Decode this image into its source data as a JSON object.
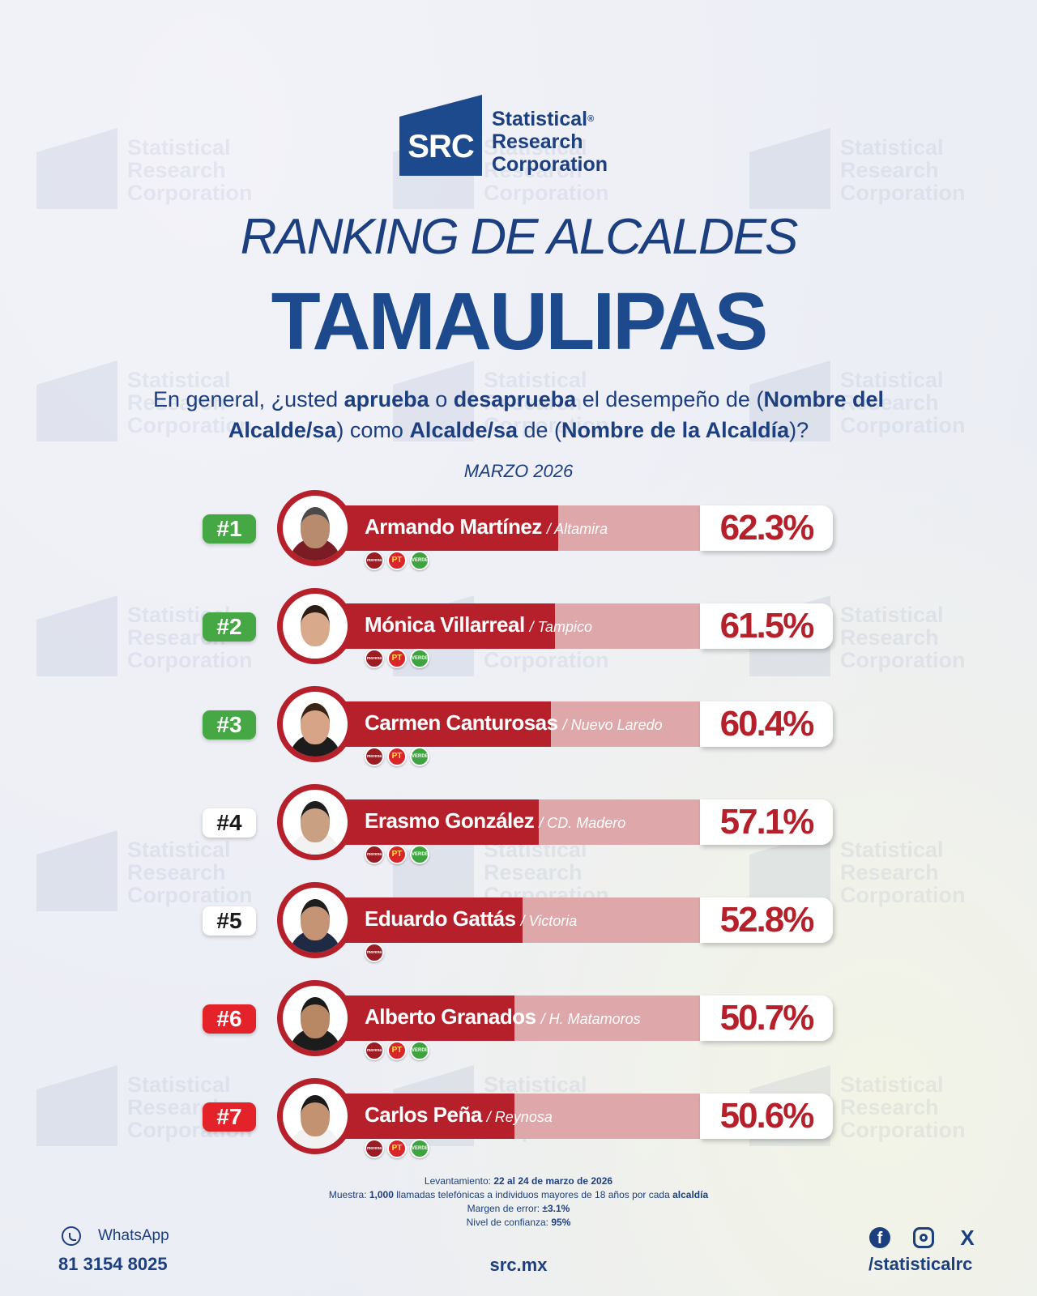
{
  "logo": {
    "abbr": "SRC",
    "line1": "Statistical",
    "reg": "®",
    "line2": "Research",
    "line3": "Corporation"
  },
  "title": "RANKING DE ALCALDES",
  "subtitle": "TAMAULIPAS",
  "question": {
    "p1": "En general, ¿usted ",
    "b1": "aprueba",
    "p2": " o ",
    "b2": "desaprueba",
    "p3": " el desempeño de (",
    "b3": "Nombre del Alcalde/sa",
    "p4": ") como ",
    "b4": "Alcalde/sa",
    "p5": " de (",
    "b5": "Nombre de la Alcaldía",
    "p6": ")?"
  },
  "date": "MARZO 2026",
  "colors": {
    "navy": "#1c3f7f",
    "bar": "#b5202a",
    "bar_track": "#dea7a9",
    "rank_green": "#45a845",
    "rank_white": "#ffffff",
    "rank_red": "#e3222a"
  },
  "chart_data": {
    "type": "bar",
    "orientation": "horizontal",
    "categories": [
      "Armando Martínez",
      "Mónica Villarreal",
      "Carmen Canturosas",
      "Erasmo González",
      "Eduardo Gattás",
      "Alberto Granados",
      "Carlos Peña"
    ],
    "values": [
      62.3,
      61.5,
      60.4,
      57.1,
      52.8,
      50.7,
      50.6
    ],
    "unit": "%"
  },
  "rows": [
    {
      "rank": "#1",
      "rank_color": "green",
      "name": "Armando Martínez",
      "city": "/ Altamira",
      "value": 62.3,
      "pct": "62.3%",
      "parties": [
        "morena",
        "pt",
        "verde"
      ],
      "skin": "#b98b6e",
      "hair": "#4a4a4a",
      "shirt": "#7a1c24"
    },
    {
      "rank": "#2",
      "rank_color": "green",
      "name": "Mónica Villarreal",
      "city": "/ Tampico",
      "value": 61.5,
      "pct": "61.5%",
      "parties": [
        "morena",
        "pt",
        "verde"
      ],
      "skin": "#d9a98b",
      "hair": "#2b1c16",
      "shirt": "#ffffff"
    },
    {
      "rank": "#3",
      "rank_color": "green",
      "name": "Carmen Canturosas",
      "city": "/ Nuevo Laredo",
      "value": 60.4,
      "pct": "60.4%",
      "parties": [
        "morena",
        "pt",
        "verde"
      ],
      "skin": "#d7a487",
      "hair": "#3a2418",
      "shirt": "#1c1c1c"
    },
    {
      "rank": "#4",
      "rank_color": "white",
      "name": "Erasmo González",
      "city": "/ CD. Madero",
      "value": 57.1,
      "pct": "57.1%",
      "parties": [
        "morena",
        "pt",
        "verde"
      ],
      "skin": "#caa083",
      "hair": "#1e1e1e",
      "shirt": "#f2f2f2"
    },
    {
      "rank": "#5",
      "rank_color": "white",
      "name": "Eduardo Gattás",
      "city": "/ Victoria",
      "value": 52.8,
      "pct": "52.8%",
      "parties": [
        "morena"
      ],
      "skin": "#c49474",
      "hair": "#1e1e1e",
      "shirt": "#1f2a44"
    },
    {
      "rank": "#6",
      "rank_color": "red",
      "name": "Alberto Granados",
      "city": "/ H. Matamoros",
      "value": 50.7,
      "pct": "50.7%",
      "parties": [
        "morena",
        "pt",
        "verde"
      ],
      "skin": "#b88764",
      "hair": "#1a1a1a",
      "shirt": "#1c1c1c"
    },
    {
      "rank": "#7",
      "rank_color": "red",
      "name": "Carlos Peña",
      "city": "/ Reynosa",
      "value": 50.6,
      "pct": "50.6%",
      "parties": [
        "morena",
        "pt",
        "verde"
      ],
      "skin": "#c29271",
      "hair": "#1a1a1a",
      "shirt": "#f2f2f2"
    }
  ],
  "party_labels": {
    "morena": "morena",
    "pt": "PT",
    "verde": "VERDE"
  },
  "footnotes": {
    "l1_label": "Levantamiento: ",
    "l1_value": "22 al 24 de marzo de 2026",
    "l2_label": "Muestra: ",
    "l2_value": "1,000",
    "l2_mid": " llamadas telefónicas a individuos mayores de 18 años por cada ",
    "l2_end": "alcaldía",
    "l3_label": "Margen de error: ",
    "l3_value": "±3.1%",
    "l4_label": "Nivel de confianza: ",
    "l4_value": "95%"
  },
  "footer": {
    "whatsapp_label": "WhatsApp",
    "phone": "81 3154 8025",
    "site": "src.mx",
    "facebook_glyph": "f",
    "x_glyph": "X",
    "handle": "/statisticalrc"
  }
}
